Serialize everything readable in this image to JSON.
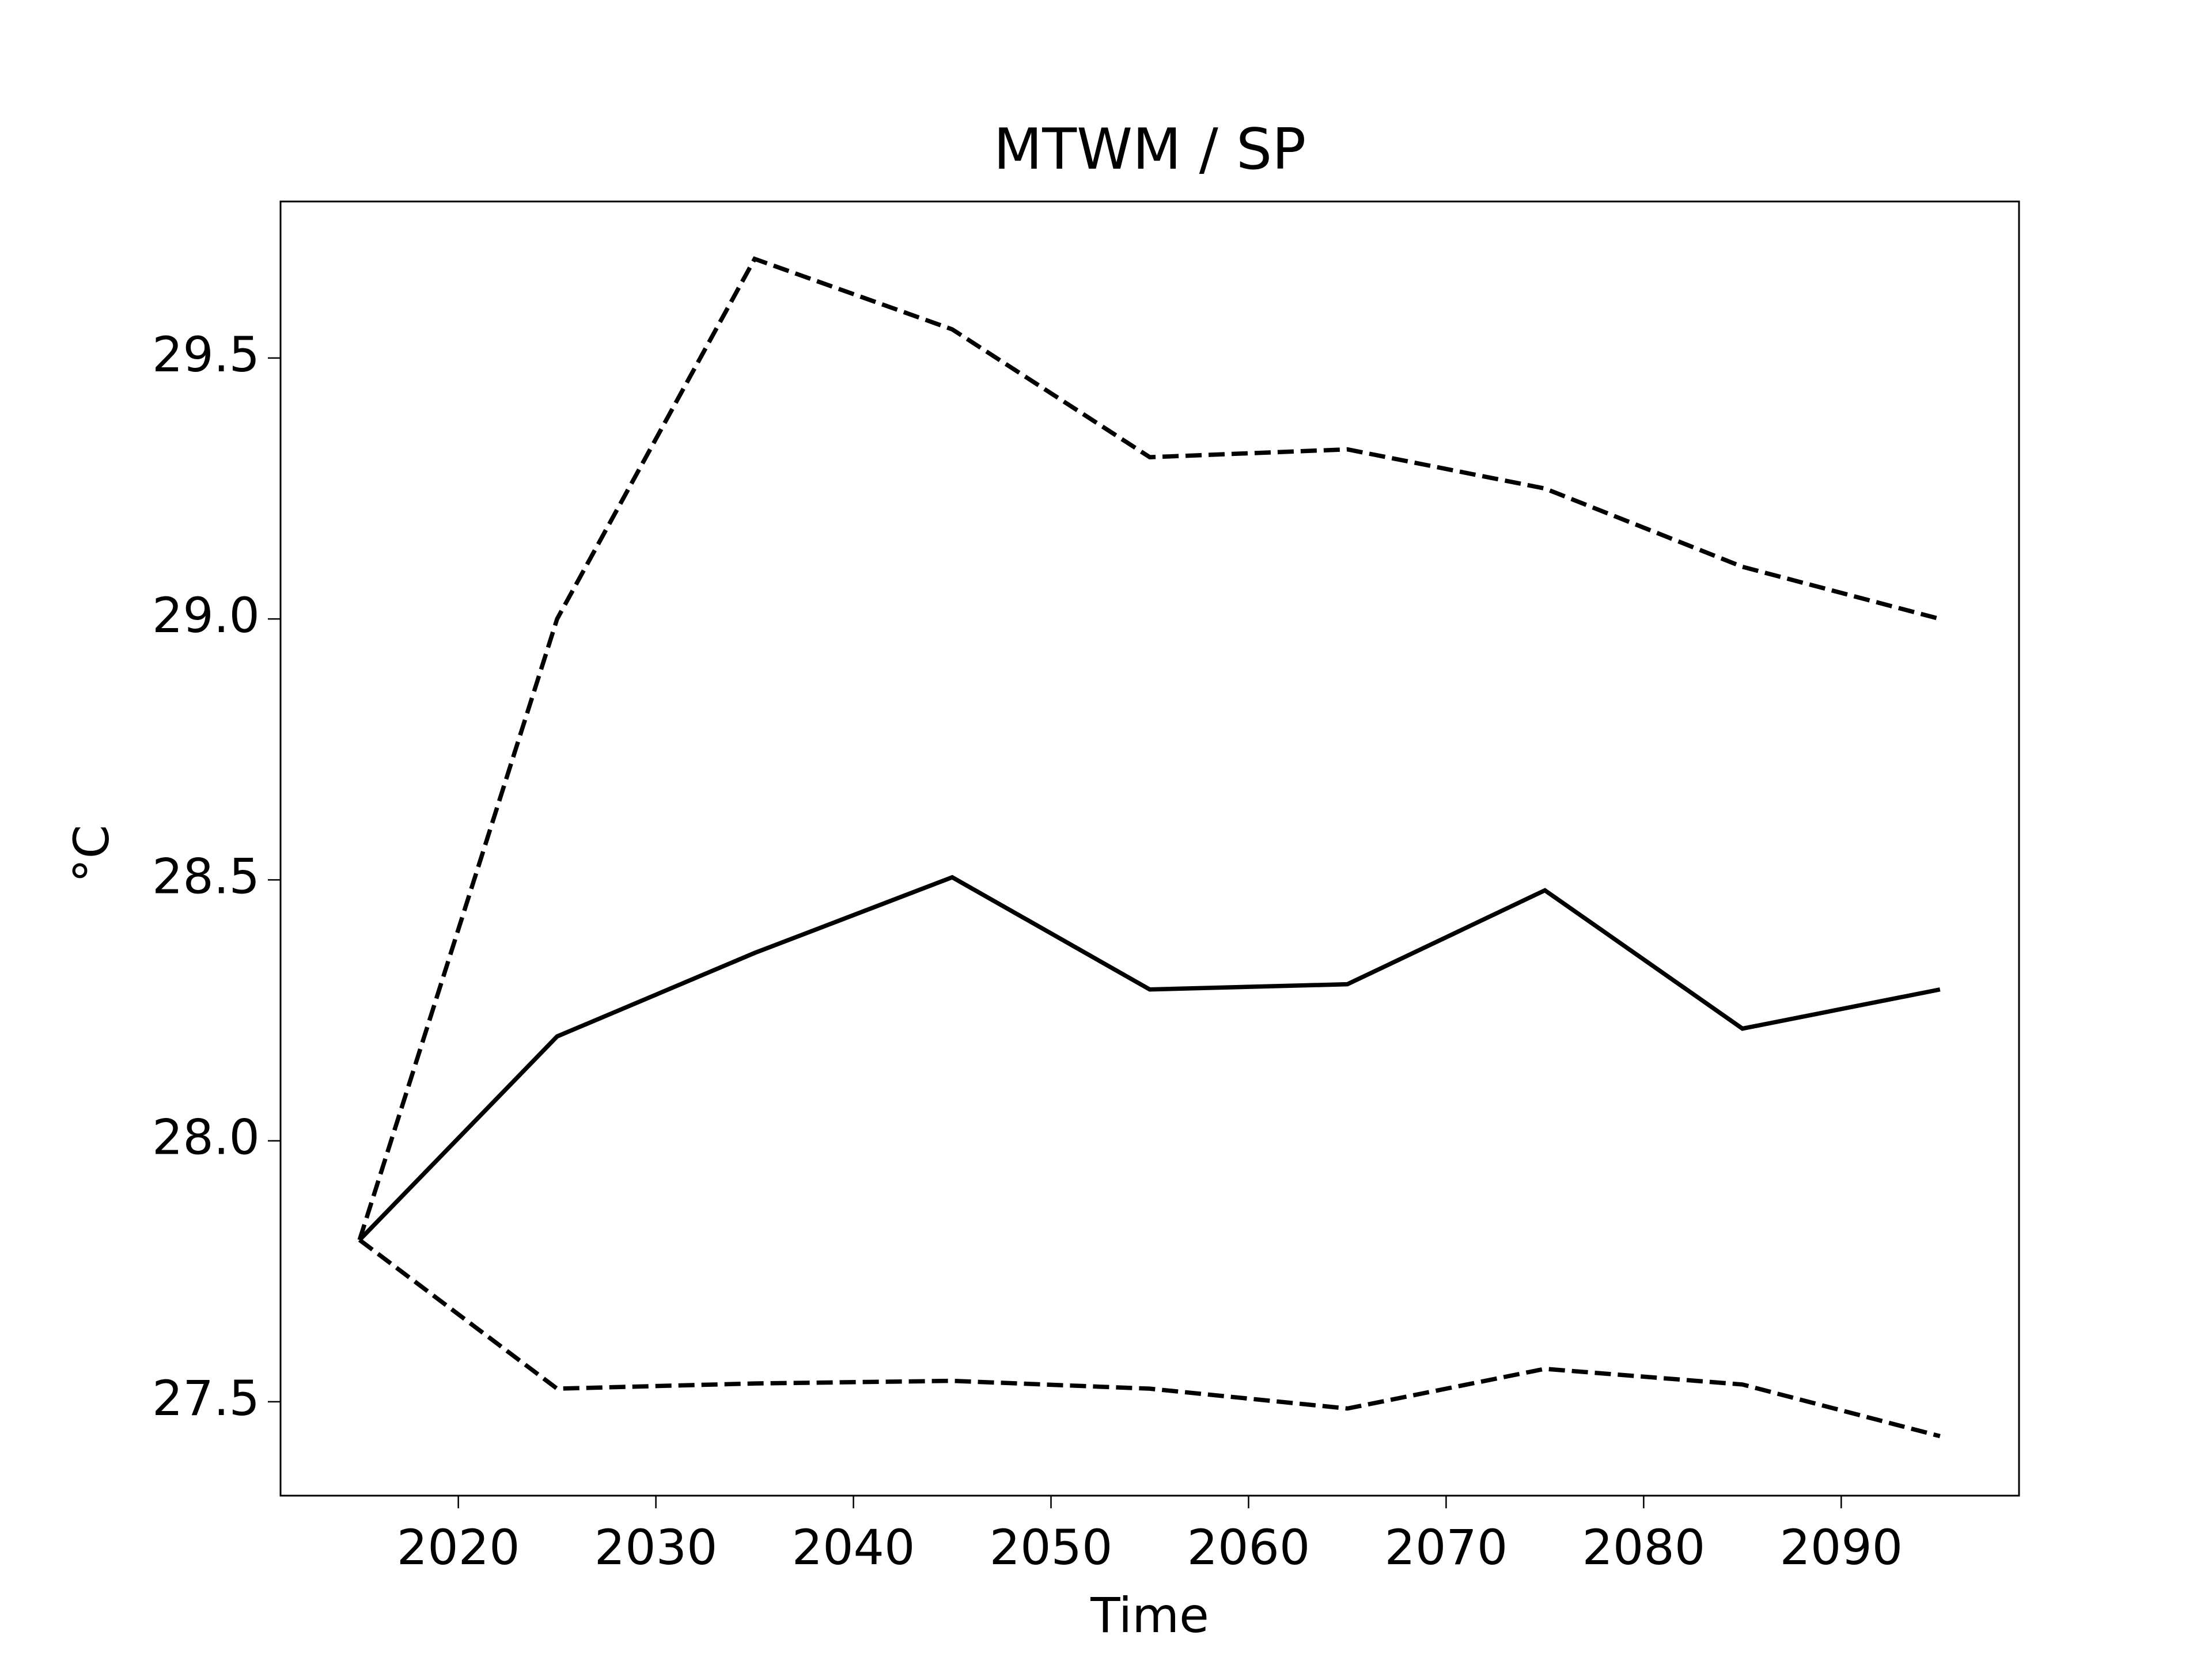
{
  "chart_data": {
    "type": "line",
    "title": "MTWM / SP",
    "x_label": "Time",
    "y_label": "°C",
    "x": [
      2015,
      2025,
      2035,
      2045,
      2055,
      2065,
      2075,
      2085,
      2095
    ],
    "series": [
      {
        "color": "#000000",
        "dash": false,
        "values": [
          27.81,
          28.2,
          28.36,
          28.505,
          28.29,
          28.3,
          28.48,
          28.215,
          28.29
        ]
      },
      {
        "color": "#000000",
        "dash": true,
        "values": [
          27.81,
          29.0,
          29.69,
          29.555,
          29.31,
          29.325,
          29.25,
          29.1,
          29.0
        ]
      },
      {
        "color": "#000000",
        "dash": true,
        "values": [
          27.81,
          27.525,
          27.535,
          27.54,
          27.525,
          27.487,
          27.563,
          27.533,
          27.434
        ]
      }
    ],
    "xlim": [
      2011,
      2099
    ],
    "ylim": [
      27.32,
      29.8
    ],
    "xticks": [
      2020,
      2030,
      2040,
      2050,
      2060,
      2070,
      2080,
      2090
    ],
    "yticks": [
      {
        "value": 27.5,
        "label": "27.5"
      },
      {
        "value": 28.0,
        "label": "28.0"
      },
      {
        "value": 28.5,
        "label": "28.5"
      },
      {
        "value": 29.0,
        "label": "29.0"
      },
      {
        "value": 29.5,
        "label": "29.5"
      }
    ],
    "grid": false
  }
}
